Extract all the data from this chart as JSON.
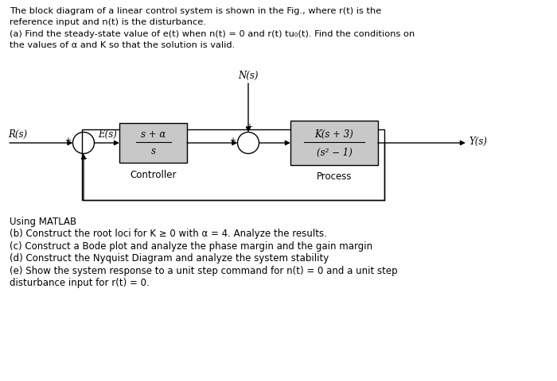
{
  "bg_color": "#ffffff",
  "text_color": "#000000",
  "box_fill": "#c8c8c8",
  "box_edge": "#000000",
  "line_color": "#000000",
  "title_line1": "The block diagram of a linear control system is shown in the Fig., where r(t) is the",
  "title_line2": "reference input and n(t) is the disturbance.",
  "title_line3": "(a) Find the steady-state value of e(t) when n(t) = 0 and r(t) tu₀(t). Find the conditions on",
  "title_line4": "the values of α and K so that the solution is valid.",
  "bottom_line0": "Using MATLAB",
  "bottom_line1": "(b) Construct the root loci for K ≥ 0 with α = 4. Analyze the results.",
  "bottom_line2": "(c) Construct a Bode plot and analyze the phase margin and the gain margin",
  "bottom_line3": "(d) Construct the Nyquist Diagram and analyze the system stability",
  "bottom_line4": "(e) Show the system response to a unit step command for n(t) = 0 and a unit step",
  "bottom_line5": "disturbance input for r(t) = 0.",
  "controller_label": "Controller",
  "process_label": "Process",
  "controller_tf_num": "s + α",
  "controller_tf_den": "s",
  "process_tf_num": "K(s + 3)",
  "process_tf_den": "(s² − 1)",
  "R_label": "R(s)",
  "E_label": "E(s)",
  "N_label": "N(s)",
  "Y_label": "Y(s)"
}
